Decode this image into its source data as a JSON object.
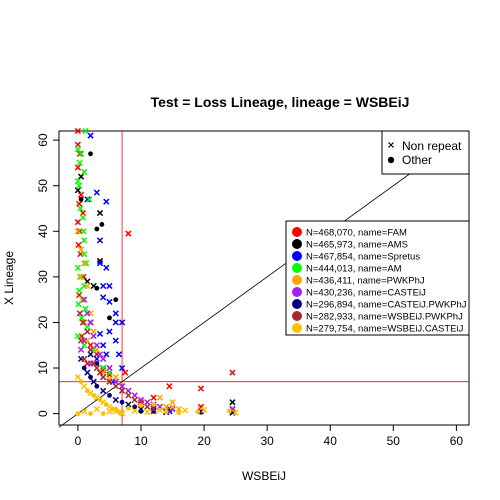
{
  "chart_data": {
    "type": "scatter",
    "title": "Test = Loss Lineage, lineage = WSBEiJ",
    "xlabel": "WSBEiJ",
    "ylabel": "X Lineage",
    "xlim": [
      -3,
      62
    ],
    "ylim": [
      -2.5,
      62
    ],
    "xticks": [
      0,
      10,
      20,
      30,
      40,
      50,
      60
    ],
    "yticks": [
      0,
      10,
      20,
      30,
      40,
      50,
      60
    ],
    "grid": false,
    "reference_lines": {
      "diagonal": [
        [
          -3,
          -3
        ],
        [
          62,
          62
        ]
      ],
      "vertical_x": 7,
      "horizontal_y": 7,
      "threshold_color": "#ff0000",
      "diagonal_color": "#000000"
    },
    "marker_legend": {
      "placement": "top-right",
      "entries": [
        {
          "label": "Non repeat",
          "marker": "cross"
        },
        {
          "label": "Other",
          "marker": "filled-circle"
        }
      ]
    },
    "series_legend": {
      "placement": "right",
      "entries": [
        {
          "label": "N=468,070, name=FAM",
          "color": "#ff0000"
        },
        {
          "label": "N=465,973, name=AMS",
          "color": "#000000"
        },
        {
          "label": "N=467,854, name=Spretus",
          "color": "#0000ff"
        },
        {
          "label": "N=444,013, name=AM",
          "color": "#00ff00"
        },
        {
          "label": "N=436,411, name=PWKPhJ",
          "color": "#ffa500"
        },
        {
          "label": "N=430,236, name=CASTEiJ",
          "color": "#a020f0"
        },
        {
          "label": "N=296,894, name=CASTEiJ.PWKPhJ",
          "color": "#000080"
        },
        {
          "label": "N=282,933, name=WSBEiJ.PWKPhJ",
          "color": "#a52a2a"
        },
        {
          "label": "N=279,754, name=WSBEiJ.CASTEiJ",
          "color": "#ffc000"
        }
      ]
    },
    "series": [
      {
        "name": "FAM",
        "color": "#ff0000",
        "marker": "cross",
        "points": [
          [
            0,
            62
          ],
          [
            0,
            59
          ],
          [
            0.3,
            57
          ],
          [
            0,
            54
          ],
          [
            0.5,
            48
          ],
          [
            0.2,
            46
          ],
          [
            0.8,
            44
          ],
          [
            0,
            42
          ],
          [
            0.3,
            40
          ],
          [
            0.1,
            37
          ],
          [
            0.4,
            35
          ],
          [
            0.9,
            30
          ],
          [
            0.2,
            26
          ],
          [
            1,
            20
          ],
          [
            0.6,
            17
          ],
          [
            2,
            15
          ],
          [
            3,
            13
          ],
          [
            1.5,
            11
          ],
          [
            4,
            9.5
          ],
          [
            5,
            8.5
          ],
          [
            7.5,
            9
          ],
          [
            8,
            39.5
          ],
          [
            12,
            3.5
          ],
          [
            14.5,
            6
          ],
          [
            19.5,
            5.5
          ],
          [
            24.5,
            9
          ],
          [
            10,
            2.5
          ],
          [
            15,
            1
          ],
          [
            19.5,
            1.5
          ],
          [
            12,
            0.5
          ]
        ]
      },
      {
        "name": "AMS",
        "color": "#000000",
        "marker": "mixed",
        "points": [
          [
            0,
            49
          ],
          [
            0.5,
            47
          ],
          [
            1.5,
            29
          ],
          [
            2,
            57
          ],
          [
            2.5,
            28
          ],
          [
            3,
            27.5
          ],
          [
            3.5,
            44
          ],
          [
            3.8,
            41.5
          ],
          [
            3.5,
            33.5
          ],
          [
            6,
            25
          ],
          [
            7,
            6
          ],
          [
            3,
            40.5
          ],
          [
            24.5,
            2.5
          ],
          [
            19.5,
            1
          ],
          [
            14.5,
            1
          ],
          [
            10,
            0.5
          ],
          [
            0.5,
            52
          ],
          [
            5,
            21
          ]
        ]
      },
      {
        "name": "Spretus",
        "color": "#0000ff",
        "marker": "cross",
        "points": [
          [
            2,
            61
          ],
          [
            3,
            48.5
          ],
          [
            4.5,
            46.5
          ],
          [
            1.5,
            47
          ],
          [
            3.5,
            38
          ],
          [
            3.5,
            33
          ],
          [
            4.5,
            32
          ],
          [
            4,
            28
          ],
          [
            5,
            28
          ],
          [
            4,
            25.5
          ],
          [
            5,
            24.5
          ],
          [
            6,
            20
          ],
          [
            7,
            20
          ],
          [
            5,
            18
          ],
          [
            6,
            16
          ],
          [
            4,
            15
          ],
          [
            6.5,
            13
          ],
          [
            3,
            12
          ],
          [
            2,
            20
          ],
          [
            2.5,
            11
          ],
          [
            4,
            10
          ],
          [
            7,
            10
          ],
          [
            4.5,
            13
          ],
          [
            3.5,
            17.5
          ],
          [
            6,
            22
          ],
          [
            5.5,
            7
          ],
          [
            24.5,
            1
          ],
          [
            19.5,
            0.5
          ],
          [
            14.5,
            0.5
          ],
          [
            12,
            1.5
          ]
        ]
      },
      {
        "name": "AM",
        "color": "#00ff00",
        "marker": "cross",
        "points": [
          [
            0,
            58
          ],
          [
            0.5,
            57
          ],
          [
            0.3,
            55
          ],
          [
            1,
            53
          ],
          [
            0,
            51
          ],
          [
            0.2,
            50
          ],
          [
            0.4,
            45
          ],
          [
            0.8,
            43
          ],
          [
            1,
            38
          ],
          [
            0.5,
            36
          ],
          [
            1,
            35
          ],
          [
            0,
            32
          ],
          [
            0.5,
            30
          ],
          [
            1,
            28
          ],
          [
            0.2,
            27
          ],
          [
            0.7,
            25
          ],
          [
            1.2,
            23
          ],
          [
            0.6,
            21
          ],
          [
            1.5,
            19
          ],
          [
            0,
            17
          ],
          [
            1,
            15
          ],
          [
            2.5,
            14
          ],
          [
            3,
            11
          ],
          [
            4,
            10
          ],
          [
            5,
            9
          ],
          [
            1.2,
            62
          ],
          [
            1.8,
            47
          ],
          [
            0.9,
            40
          ],
          [
            1.3,
            33
          ],
          [
            0.1,
            24
          ]
        ]
      },
      {
        "name": "PWKPhJ",
        "color": "#ffa500",
        "marker": "cross",
        "points": [
          [
            0,
            40
          ],
          [
            0.5,
            36
          ],
          [
            1,
            33
          ],
          [
            0.3,
            30
          ],
          [
            1.5,
            28
          ],
          [
            0.8,
            25
          ],
          [
            2,
            22
          ],
          [
            1,
            20
          ],
          [
            2.5,
            18
          ],
          [
            1.5,
            16
          ],
          [
            3,
            14
          ],
          [
            2,
            13
          ],
          [
            4,
            12
          ],
          [
            3,
            11
          ],
          [
            5,
            10
          ],
          [
            4,
            9
          ],
          [
            6,
            8
          ],
          [
            5,
            7.5
          ],
          [
            7,
            6
          ],
          [
            8,
            5
          ],
          [
            9,
            4
          ],
          [
            10,
            3
          ],
          [
            11,
            2.5
          ],
          [
            12,
            2
          ],
          [
            14,
            1.5
          ],
          [
            16,
            1
          ],
          [
            19.5,
            1
          ],
          [
            24.5,
            0.5
          ],
          [
            15,
            2.5
          ],
          [
            13,
            3.5
          ]
        ]
      },
      {
        "name": "CASTEiJ",
        "color": "#a020f0",
        "marker": "cross",
        "points": [
          [
            1,
            25
          ],
          [
            1.5,
            22
          ],
          [
            2,
            20
          ],
          [
            2.5,
            17
          ],
          [
            3,
            15
          ],
          [
            3.5,
            13
          ],
          [
            4,
            12
          ],
          [
            2,
            11
          ],
          [
            5,
            10
          ],
          [
            4,
            8
          ],
          [
            6,
            7
          ],
          [
            7,
            6
          ],
          [
            8,
            5
          ],
          [
            9,
            4
          ],
          [
            10,
            3
          ],
          [
            11,
            2.5
          ],
          [
            12,
            2
          ],
          [
            13,
            1.5
          ],
          [
            15,
            1
          ],
          [
            19.5,
            0.5
          ],
          [
            24.5,
            1
          ],
          [
            0.5,
            14
          ],
          [
            1,
            16
          ]
        ]
      },
      {
        "name": "CASTEiJ.PWKPhJ",
        "color": "#000080",
        "marker": "mixed",
        "points": [
          [
            0.5,
            12
          ],
          [
            1,
            10
          ],
          [
            1.5,
            9
          ],
          [
            2,
            8
          ],
          [
            2.5,
            7
          ],
          [
            3,
            6
          ],
          [
            4,
            5
          ],
          [
            5,
            4
          ],
          [
            6,
            3
          ],
          [
            7,
            2.5
          ],
          [
            8,
            2
          ],
          [
            9,
            1.5
          ],
          [
            10,
            1
          ],
          [
            12,
            0.5
          ],
          [
            14,
            0.3
          ],
          [
            19.5,
            0.3
          ],
          [
            24.5,
            0.2
          ],
          [
            3,
            11
          ],
          [
            2,
            13
          ]
        ]
      },
      {
        "name": "WSBEiJ.PWKPhJ",
        "color": "#a52a2a",
        "marker": "cross",
        "points": [
          [
            0.3,
            22
          ],
          [
            0.8,
            20
          ],
          [
            1.5,
            18
          ],
          [
            0.5,
            16
          ],
          [
            2,
            14
          ],
          [
            1,
            12
          ],
          [
            2.5,
            11
          ],
          [
            3,
            10
          ],
          [
            3.5,
            9
          ],
          [
            4,
            8
          ],
          [
            5,
            7
          ],
          [
            6,
            6
          ],
          [
            7,
            5
          ],
          [
            8,
            4
          ],
          [
            9,
            3
          ],
          [
            10,
            2
          ],
          [
            11,
            1.5
          ],
          [
            12,
            1
          ],
          [
            14,
            0.5
          ]
        ]
      },
      {
        "name": "WSBEiJ.CASTEiJ",
        "color": "#ffc000",
        "marker": "mixed",
        "points": [
          [
            0,
            8
          ],
          [
            0.5,
            7
          ],
          [
            1,
            6
          ],
          [
            1.5,
            5
          ],
          [
            2,
            4.5
          ],
          [
            2.5,
            4
          ],
          [
            3,
            3.5
          ],
          [
            3.5,
            3
          ],
          [
            4,
            2.5
          ],
          [
            4.5,
            2
          ],
          [
            5,
            1.5
          ],
          [
            5.5,
            1
          ],
          [
            6,
            0.5
          ],
          [
            6.5,
            0.3
          ],
          [
            7,
            0.2
          ],
          [
            0,
            0
          ],
          [
            1,
            0.5
          ],
          [
            2,
            0
          ],
          [
            3,
            1
          ],
          [
            4,
            0
          ],
          [
            5,
            0.5
          ],
          [
            6,
            1
          ],
          [
            7,
            0
          ],
          [
            8,
            1.2
          ],
          [
            9,
            0.6
          ],
          [
            10,
            1.8
          ],
          [
            11,
            0.3
          ],
          [
            12,
            2
          ],
          [
            13,
            0.8
          ],
          [
            14,
            0.4
          ],
          [
            15,
            1.5
          ],
          [
            16,
            0.2
          ],
          [
            17,
            0.7
          ],
          [
            19,
            0.4
          ],
          [
            20,
            0.8
          ],
          [
            24,
            0.6
          ],
          [
            25,
            0.2
          ]
        ]
      }
    ]
  }
}
